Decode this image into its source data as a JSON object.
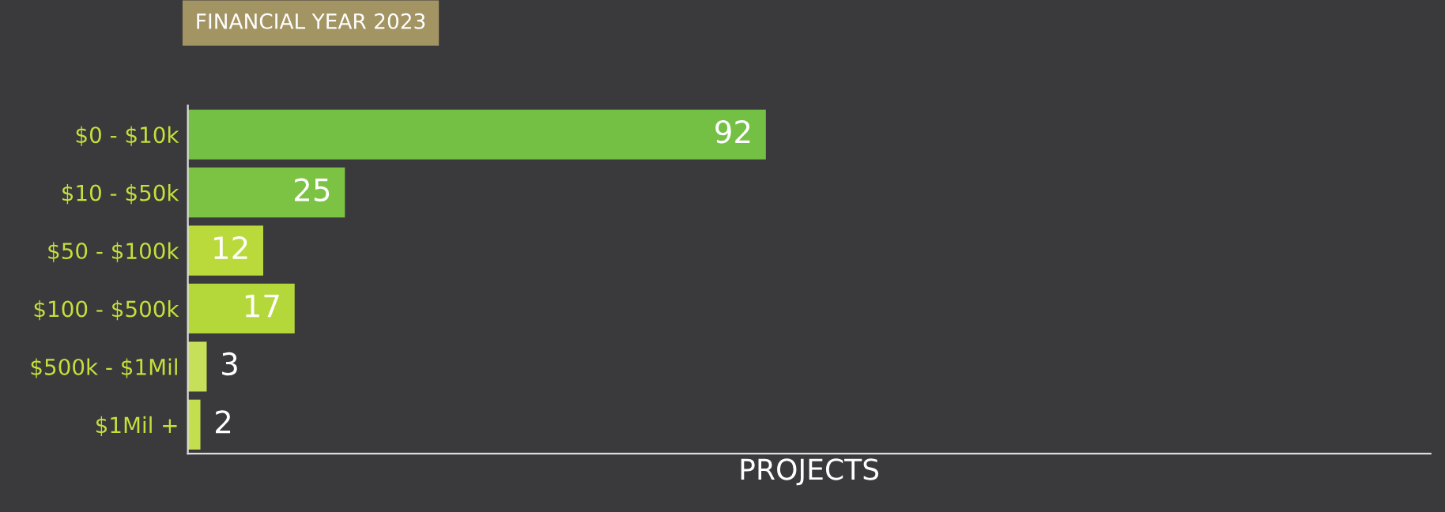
{
  "chart_data": {
    "type": "bar",
    "orientation": "horizontal",
    "title": "FINANCIAL YEAR 2023",
    "xlabel": "PROJECTS",
    "categories": [
      "$0 - $10k",
      "$10 - $50k",
      "$50 - $100k",
      "$100 - $500k",
      "$500k - $1Mil",
      "$1Mil +"
    ],
    "values": [
      92,
      25,
      12,
      17,
      3,
      2
    ],
    "colors": [
      "#74c044",
      "#7cc243",
      "#b9da3a",
      "#b4d83a",
      "#c6e05a",
      "#c3df4e"
    ],
    "data_labels": true,
    "grid": false,
    "legend": false
  }
}
